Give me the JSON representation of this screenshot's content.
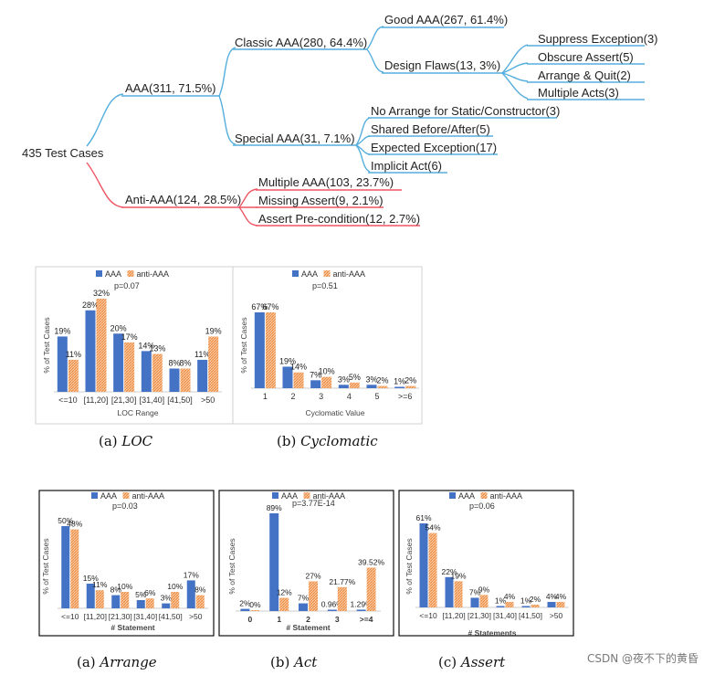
{
  "tree": {
    "root": "435 Test Cases",
    "aaa": "AAA(311, 71.5%)",
    "classic": "Classic AAA(280, 64.4%)",
    "good": "Good AAA(267, 61.4%)",
    "design_flaws": "Design Flaws(13, 3%)",
    "suppress": "Suppress Exception(3)",
    "obscure": "Obscure Assert(5)",
    "arrange_quit": "Arrange & Quit(2)",
    "multiple_acts": "Multiple Acts(3)",
    "special": "Special AAA(31, 7.1%)",
    "no_arrange": "No Arrange for Static/Constructor(3)",
    "shared": "Shared Before/After(5)",
    "expected": "Expected Exception(17)",
    "implicit": "Implicit Act(6)",
    "anti": "Anti-AAA(124, 28.5%)",
    "multi_aaa": "Multiple AAA(103, 23.7%)",
    "missing": "Missing Assert(9, 2.1%)",
    "precond": "Assert Pre-condition(12, 2.7%)",
    "colors": {
      "aaa_branch": "#55aedd",
      "anti_branch": "#ee5564"
    }
  },
  "captions": {
    "loc": [
      "(a) ",
      "LOC"
    ],
    "cyc": [
      "(b) ",
      "Cyclomatic"
    ],
    "arrange": [
      "(a) ",
      "Arrange"
    ],
    "act": [
      "(b) ",
      "Act"
    ],
    "assert": [
      "(c) ",
      "Assert"
    ]
  },
  "watermark": "CSDN @夜不下的黄昏",
  "colors": {
    "aaa": "#4472c4",
    "anti": "#f4a46a"
  },
  "chart_data": [
    {
      "id": "loc",
      "type": "bar",
      "legend": [
        "AAA",
        "anti-AAA"
      ],
      "p_label": "p=0.07",
      "ylabel": "% of Test Cases",
      "xlabel": "LOC Range",
      "categories": [
        "<=10",
        "[11,20]",
        "[21,30]",
        "[31,40]",
        "[41,50]",
        ">50"
      ],
      "series": [
        {
          "name": "AAA",
          "values": [
            19,
            28,
            20,
            14,
            8,
            11
          ],
          "labels": [
            "19%",
            "28%",
            "20%",
            "14%",
            "8%",
            "11%"
          ]
        },
        {
          "name": "anti-AAA",
          "values": [
            11,
            32,
            17,
            13,
            8,
            19
          ],
          "labels": [
            "11%",
            "32%",
            "17%",
            "13%",
            "8%",
            "19%"
          ]
        }
      ],
      "ylim": [
        0,
        32
      ]
    },
    {
      "id": "cyc",
      "type": "bar",
      "legend": [
        "AAA",
        "anti-AAA"
      ],
      "p_label": "p=0.51",
      "ylabel": "% of Test Cases",
      "xlabel": "Cyclomatic Value",
      "categories": [
        "1",
        "2",
        "3",
        "4",
        "5",
        ">=6"
      ],
      "series": [
        {
          "name": "AAA",
          "values": [
            67,
            19,
            7,
            3,
            3,
            1
          ],
          "labels": [
            "67%",
            "19%",
            "7%",
            "3%",
            "3%",
            "1%"
          ]
        },
        {
          "name": "anti-AAA",
          "values": [
            67,
            14,
            10,
            5,
            2,
            2
          ],
          "labels": [
            "67%",
            "14%",
            "10%",
            "5%",
            "2%",
            "2%"
          ]
        }
      ],
      "ylim": [
        0,
        67
      ]
    },
    {
      "id": "arrange",
      "type": "bar",
      "legend": [
        "AAA",
        "anti-AAA"
      ],
      "p_label": "p=0.03",
      "ylabel": "% of Test Cases",
      "xlabel": "# Statement",
      "categories": [
        "<=10",
        "[11,20]",
        "[21,30]",
        "[31,40]",
        "[41,50]",
        ">50"
      ],
      "series": [
        {
          "name": "AAA",
          "values": [
            50,
            15,
            8,
            5,
            3,
            17
          ],
          "labels": [
            "50%",
            "15%",
            "8%",
            "5%",
            "3%",
            "17%"
          ]
        },
        {
          "name": "anti-AAA",
          "values": [
            48,
            11,
            10,
            6,
            10,
            8
          ],
          "labels": [
            "48%",
            "11%",
            "10%",
            "6%",
            "10%",
            "8%"
          ]
        }
      ],
      "ylim": [
        0,
        50
      ]
    },
    {
      "id": "act",
      "type": "bar",
      "legend": [
        "AAA",
        "anti-AAA"
      ],
      "p_label": "p=3.77E-14",
      "ylabel": "% of Test Cases",
      "xlabel": "# Statement",
      "categories": [
        "0",
        "1",
        "2",
        "3",
        ">=4"
      ],
      "series": [
        {
          "name": "AAA",
          "values": [
            2,
            89,
            7,
            0.96,
            1.29
          ],
          "labels": [
            "2%",
            "89%",
            "7%",
            "0.96%",
            "1.29%"
          ]
        },
        {
          "name": "anti-AAA",
          "values": [
            0,
            12,
            27,
            21.77,
            39.52
          ],
          "labels": [
            "0%",
            "12%",
            "27%",
            "21.77%",
            "39.52%"
          ]
        }
      ],
      "ylim": [
        0,
        89
      ]
    },
    {
      "id": "assert",
      "type": "bar",
      "legend": [
        "AAA",
        "anti-AAA"
      ],
      "p_label": "p=0.06",
      "ylabel": "% of Test Cases",
      "xlabel": "# Statements",
      "categories": [
        "<=10",
        "[11,20]",
        "[21,30]",
        "[31,40]",
        "[41,50]",
        ">50"
      ],
      "series": [
        {
          "name": "AAA",
          "values": [
            61,
            22,
            7,
            1,
            1,
            4
          ],
          "labels": [
            "61%",
            "22%",
            "7%",
            "1%",
            "1%",
            "4%"
          ]
        },
        {
          "name": "anti-AAA",
          "values": [
            54,
            19,
            9,
            4,
            2,
            4
          ],
          "labels": [
            "54%",
            "19%",
            "9%",
            "4%",
            "2%",
            "4%"
          ]
        }
      ],
      "ylim": [
        0,
        61
      ]
    }
  ]
}
